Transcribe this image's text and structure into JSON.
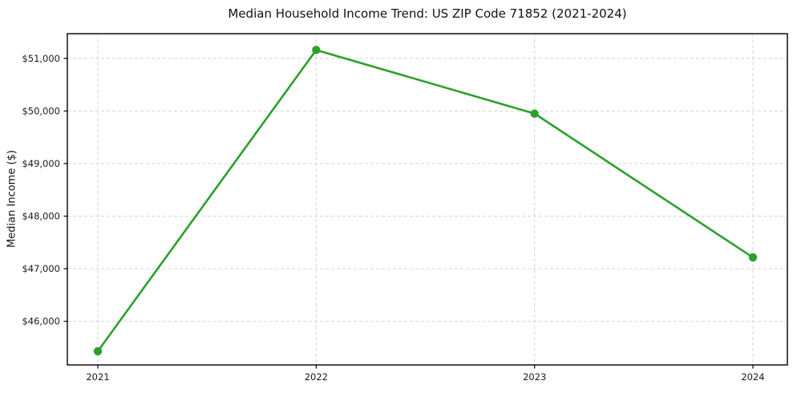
{
  "figure": {
    "kind": "static-matplotlib-style-line-chart"
  },
  "chart_data": {
    "type": "line",
    "title": "Median Household Income Trend: US ZIP Code 71852 (2021-2024)",
    "xlabel": "",
    "ylabel": "Median Income ($)",
    "x": [
      2021,
      2022,
      2023,
      2024
    ],
    "x_tick_labels": [
      "2021",
      "2022",
      "2023",
      "2024"
    ],
    "series": [
      {
        "name": "Median Household Income",
        "values": [
          45430,
          51160,
          49950,
          47215
        ]
      }
    ],
    "y_ticks": [
      46000,
      47000,
      48000,
      49000,
      50000,
      51000
    ],
    "y_tick_labels": [
      "$46,000",
      "$47,000",
      "$48,000",
      "$49,000",
      "$50,000",
      "$51,000"
    ],
    "ylim": [
      45170,
      51470
    ],
    "grid": true,
    "grid_style": "dashed",
    "legend": "none",
    "line_color": "#2ca02c",
    "marker": "circle",
    "grid_color": "#d4d4d4",
    "spine_color": "#000000",
    "tick_color": "#000000",
    "text_color": "#1a1a1a"
  }
}
